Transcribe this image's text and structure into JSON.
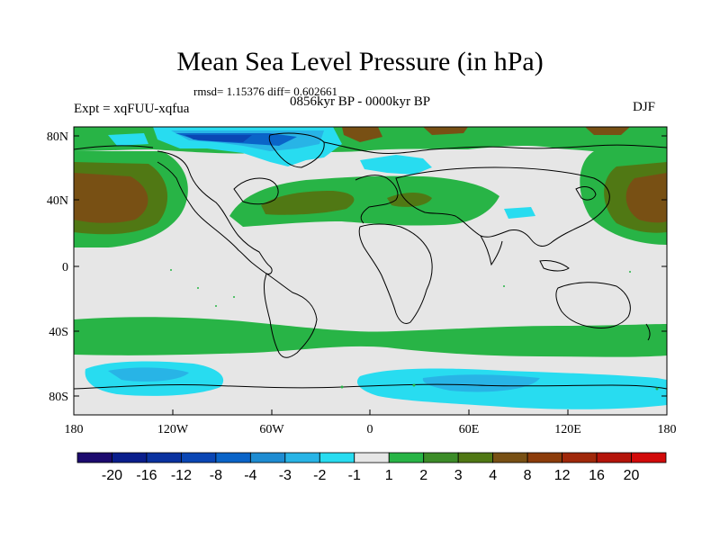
{
  "header": {
    "title": "Mean Sea Level Pressure (in hPa)",
    "stats": "rmsd= 1.15376 diff= 0.602661",
    "period": "0856kyr BP - 0000kyr BP",
    "experiment": "Expt = xqFUU-xqfua",
    "season": "DJF"
  },
  "axes": {
    "lat_labels": [
      "80N",
      "40N",
      "0",
      "40S",
      "80S"
    ],
    "lon_labels": [
      "180",
      "120W",
      "60W",
      "0",
      "60E",
      "120E",
      "180"
    ]
  },
  "colorbar": {
    "labels": [
      "-20",
      "-16",
      "-12",
      "-8",
      "-4",
      "-3",
      "-2",
      "-1",
      "1",
      "2",
      "3",
      "4",
      "8",
      "12",
      "16",
      "20"
    ],
    "colors": [
      "#1c0a6e",
      "#0a1e8c",
      "#0a32a0",
      "#0a46b4",
      "#0a64c8",
      "#1e8cd2",
      "#28b4e6",
      "#28dcf0",
      "#e6e6e6",
      "#28b446",
      "#3c8c28",
      "#507814",
      "#785014",
      "#8c3c0a",
      "#a0280a",
      "#b4140a",
      "#d20a0a"
    ]
  },
  "palette": {
    "background_gray": "#e6e6e6",
    "green": "#28b446",
    "brown_green": "#507814",
    "brown": "#785014",
    "cyan": "#28dcf0",
    "light_blue": "#28b4e6",
    "blue": "#0a64c8"
  }
}
